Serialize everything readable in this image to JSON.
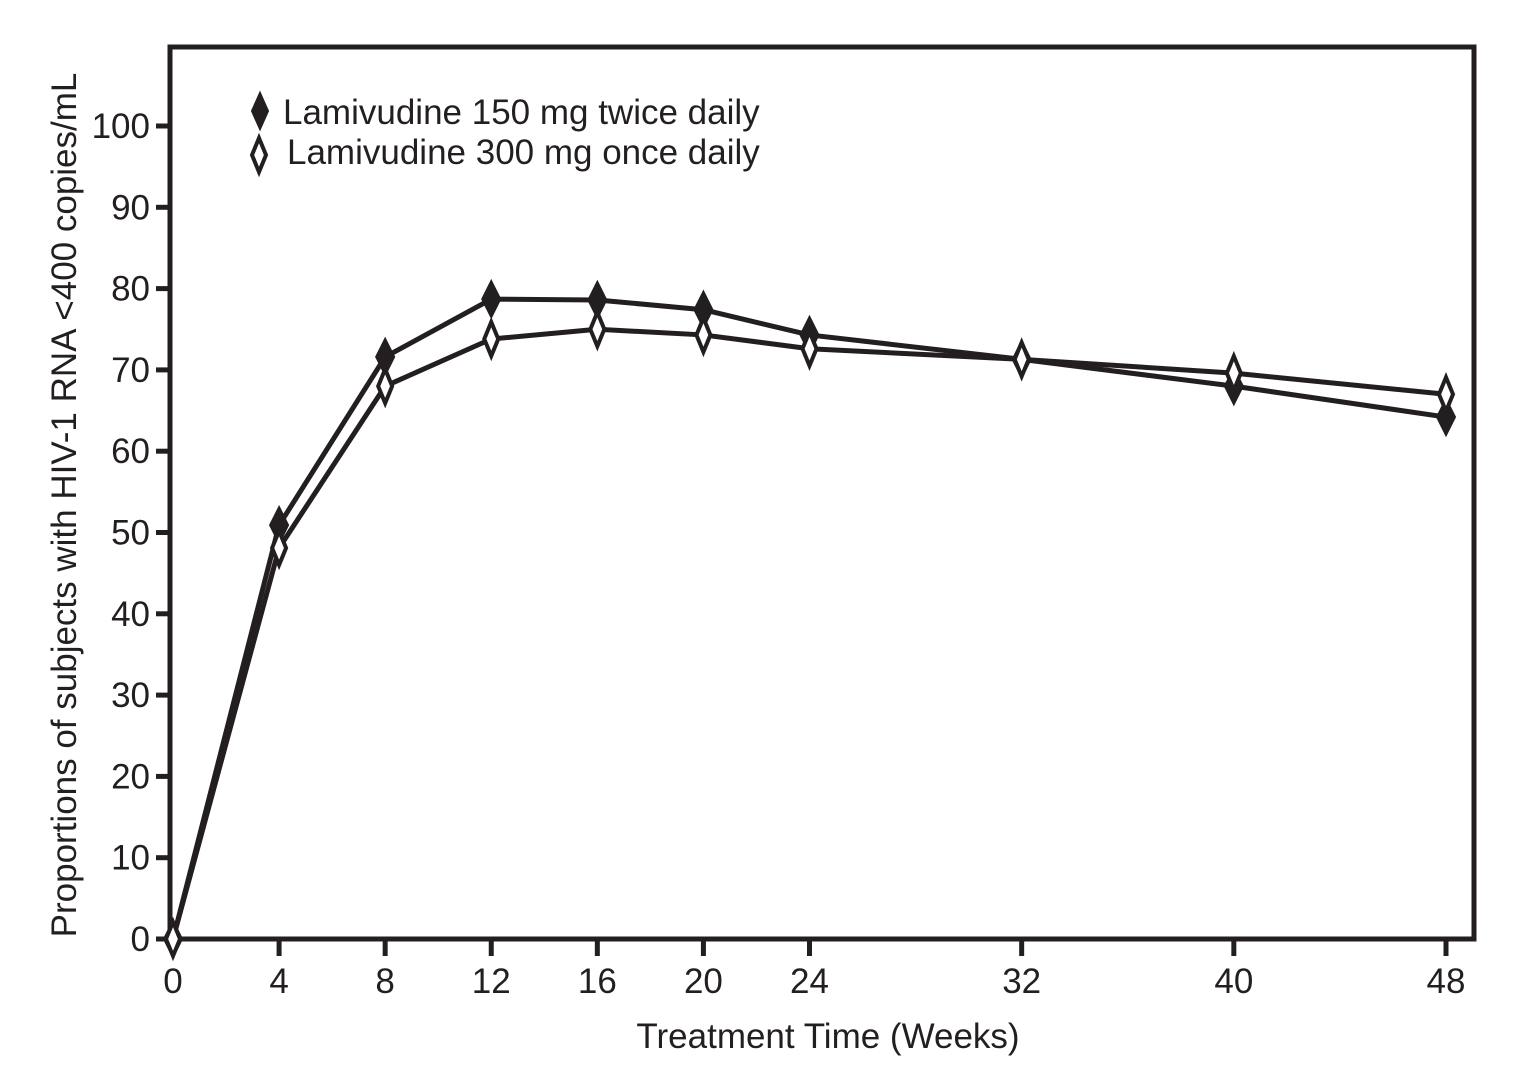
{
  "chart_data": {
    "type": "line",
    "title": "",
    "xlabel": "Treatment Time (Weeks)",
    "ylabel": "Proportions of subjects with HIV-1 RNA <400 copies/mL",
    "x": [
      0,
      4,
      8,
      12,
      16,
      20,
      24,
      32,
      40,
      48
    ],
    "x_ticks": [
      0,
      4,
      8,
      12,
      16,
      20,
      24,
      32,
      40,
      48
    ],
    "y_ticks": [
      0,
      10,
      20,
      30,
      40,
      50,
      60,
      70,
      80,
      90,
      100
    ],
    "xlim": [
      0,
      49
    ],
    "ylim": [
      0,
      100
    ],
    "grid": false,
    "legend_position": "top-left",
    "series": [
      {
        "name": "Lamivudine 150 mg twice daily",
        "marker": "filled-diamond",
        "values": [
          0,
          50.9,
          71.6,
          78.7,
          78.6,
          77.4,
          74.3,
          71.3,
          68.0,
          64.2
        ]
      },
      {
        "name": "Lamivudine 300 mg once daily",
        "marker": "open-diamond",
        "values": [
          0,
          48.1,
          68.0,
          73.8,
          75.0,
          74.3,
          72.6,
          71.3,
          69.6,
          67.0
        ]
      }
    ],
    "colors": {
      "ink": "#231f20",
      "background": "#ffffff"
    }
  }
}
